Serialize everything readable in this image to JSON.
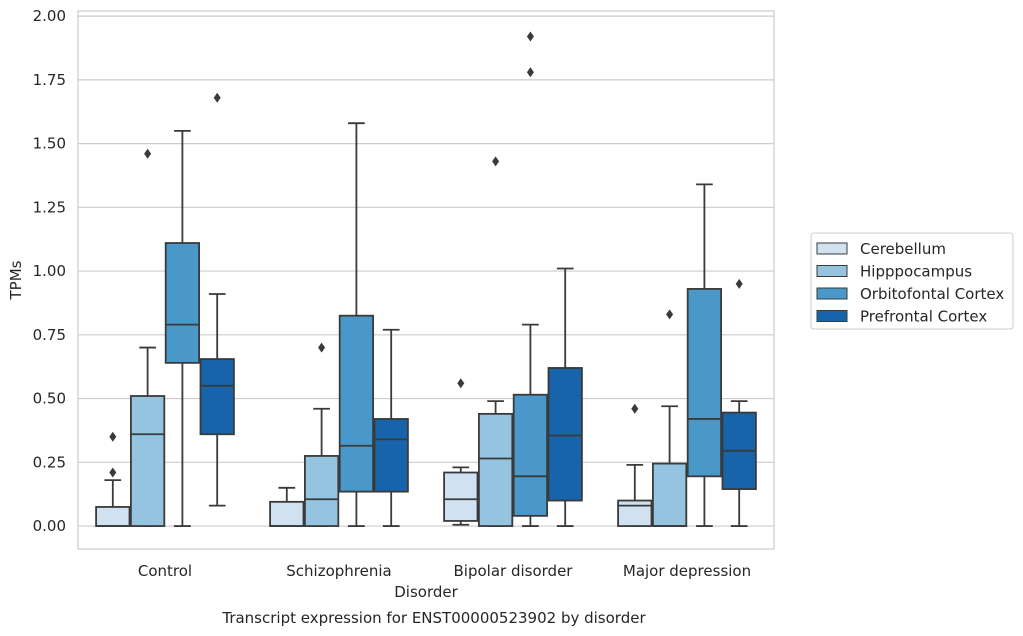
{
  "chart_data": {
    "type": "box",
    "title": "Transcript expression for ENST00000523902 by disorder",
    "xlabel": "Disorder",
    "ylabel": "TPMs",
    "categories": [
      "Control",
      "Schizophrenia",
      "Bipolar disorder",
      "Major depression"
    ],
    "ylim": [
      -0.09,
      2.02
    ],
    "yticks": [
      0.0,
      0.25,
      0.5,
      0.75,
      1.0,
      1.25,
      1.5,
      1.75,
      2.0
    ],
    "ytick_labels": [
      "0.00",
      "0.25",
      "0.50",
      "0.75",
      "1.00",
      "1.25",
      "1.50",
      "1.75",
      "2.00"
    ],
    "grid": "horizontal",
    "legend_position": "right",
    "series": [
      {
        "name": "Cerebellum",
        "color": "#d0e1f2",
        "boxes": [
          {
            "whisker_low": 0.0,
            "q1": 0.0,
            "median": 0.0,
            "q3": 0.075,
            "whisker_high": 0.18,
            "outliers": [
              0.21,
              0.35
            ]
          },
          {
            "whisker_low": 0.0,
            "q1": 0.0,
            "median": 0.0,
            "q3": 0.095,
            "whisker_high": 0.15,
            "outliers": []
          },
          {
            "whisker_low": 0.005,
            "q1": 0.02,
            "median": 0.105,
            "q3": 0.21,
            "whisker_high": 0.23,
            "outliers": [
              0.56
            ]
          },
          {
            "whisker_low": 0.0,
            "q1": 0.0,
            "median": 0.08,
            "q3": 0.1,
            "whisker_high": 0.24,
            "outliers": [
              0.46
            ]
          }
        ]
      },
      {
        "name": "Hipppocampus",
        "color": "#94c4df",
        "boxes": [
          {
            "whisker_low": 0.0,
            "q1": 0.0,
            "median": 0.36,
            "q3": 0.51,
            "whisker_high": 0.7,
            "outliers": [
              1.46
            ]
          },
          {
            "whisker_low": 0.0,
            "q1": 0.0,
            "median": 0.105,
            "q3": 0.275,
            "whisker_high": 0.46,
            "outliers": [
              0.7
            ]
          },
          {
            "whisker_low": 0.0,
            "q1": 0.0,
            "median": 0.265,
            "q3": 0.44,
            "whisker_high": 0.49,
            "outliers": [
              1.43
            ]
          },
          {
            "whisker_low": 0.0,
            "q1": 0.0,
            "median": 0.0,
            "q3": 0.245,
            "whisker_high": 0.47,
            "outliers": [
              0.83
            ]
          }
        ]
      },
      {
        "name": "Orbitofontal Cortex",
        "color": "#4a98c9",
        "boxes": [
          {
            "whisker_low": 0.0,
            "q1": 0.64,
            "median": 0.79,
            "q3": 1.11,
            "whisker_high": 1.55,
            "outliers": []
          },
          {
            "whisker_low": 0.0,
            "q1": 0.135,
            "median": 0.315,
            "q3": 0.825,
            "whisker_high": 1.58,
            "outliers": []
          },
          {
            "whisker_low": 0.0,
            "q1": 0.04,
            "median": 0.195,
            "q3": 0.515,
            "whisker_high": 0.79,
            "outliers": [
              1.78,
              1.92
            ]
          },
          {
            "whisker_low": 0.0,
            "q1": 0.195,
            "median": 0.42,
            "q3": 0.93,
            "whisker_high": 1.34,
            "outliers": []
          }
        ]
      },
      {
        "name": "Prefrontal Cortex",
        "color": "#1764ab",
        "boxes": [
          {
            "whisker_low": 0.08,
            "q1": 0.36,
            "median": 0.55,
            "q3": 0.655,
            "whisker_high": 0.91,
            "outliers": [
              1.68
            ]
          },
          {
            "whisker_low": 0.0,
            "q1": 0.135,
            "median": 0.34,
            "q3": 0.42,
            "whisker_high": 0.77,
            "outliers": []
          },
          {
            "whisker_low": 0.0,
            "q1": 0.1,
            "median": 0.355,
            "q3": 0.62,
            "whisker_high": 1.01,
            "outliers": []
          },
          {
            "whisker_low": 0.0,
            "q1": 0.145,
            "median": 0.295,
            "q3": 0.445,
            "whisker_high": 0.49,
            "outliers": [
              0.95
            ]
          }
        ]
      }
    ]
  }
}
